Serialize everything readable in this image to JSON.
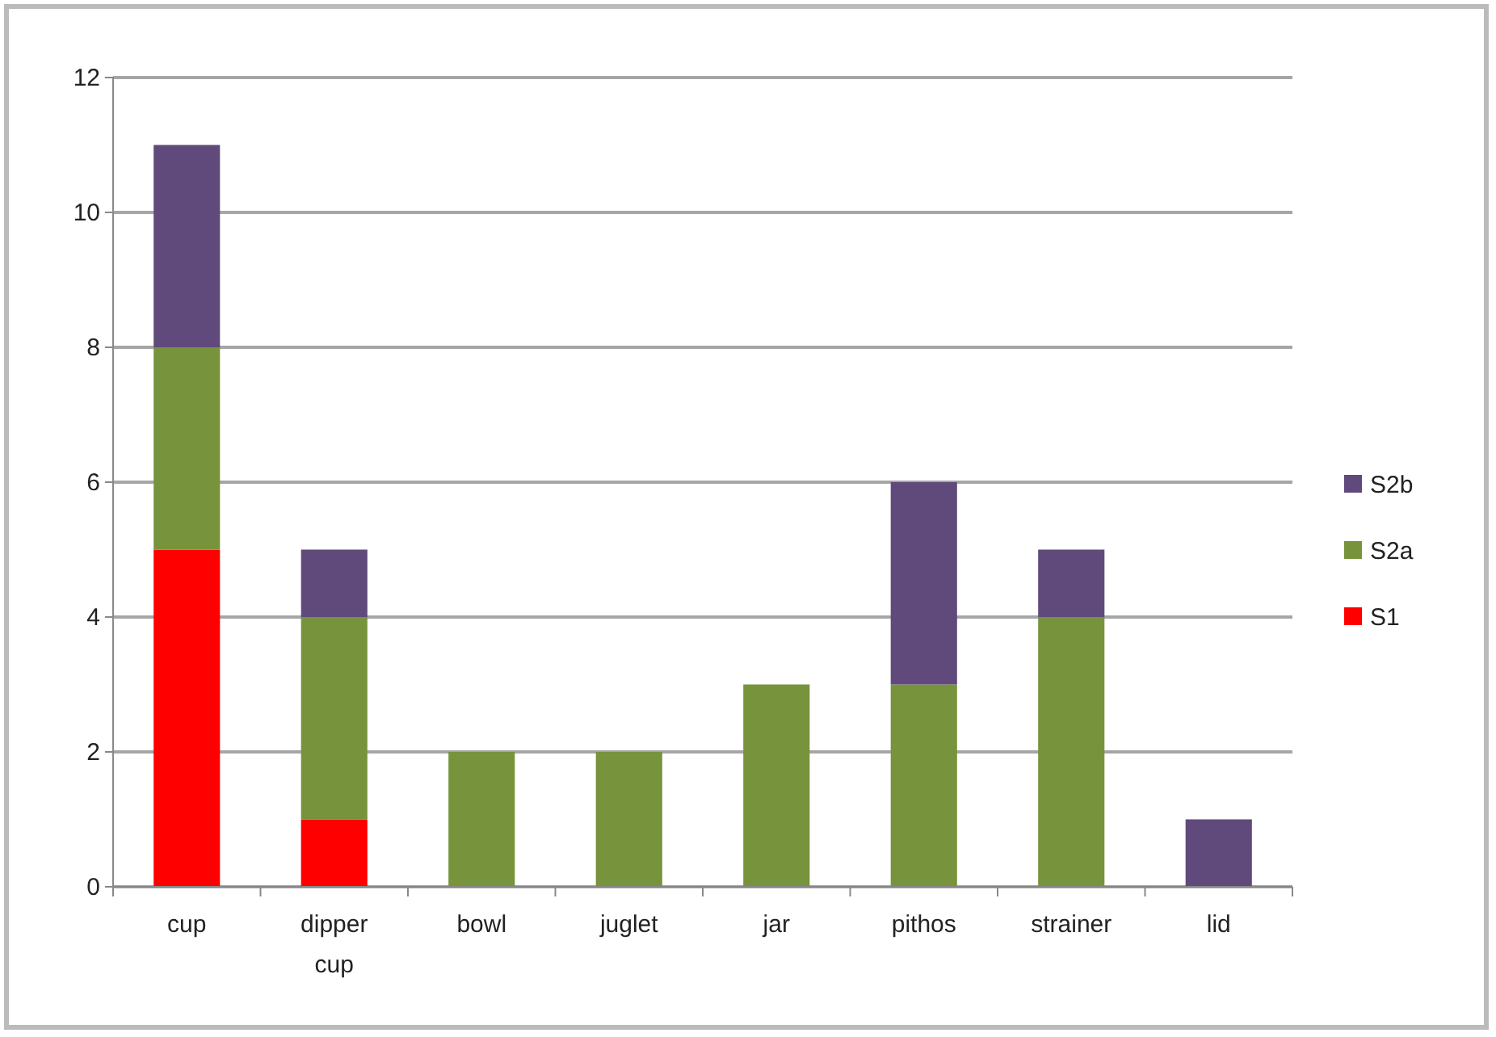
{
  "chart_data": {
    "type": "bar",
    "stacked": true,
    "categories": [
      "cup",
      "dipper cup",
      "bowl",
      "juglet",
      "jar",
      "pithos",
      "strainer",
      "lid"
    ],
    "series": [
      {
        "name": "S1",
        "color": "#ff0000",
        "values": [
          5,
          1,
          null,
          null,
          null,
          null,
          null,
          null
        ]
      },
      {
        "name": "S2a",
        "color": "#77933c",
        "values": [
          3,
          3,
          2,
          2,
          3,
          3,
          4,
          null
        ]
      },
      {
        "name": "S2b",
        "color": "#604a7b",
        "values": [
          3,
          1,
          null,
          null,
          null,
          3,
          1,
          1
        ]
      }
    ],
    "ylim": [
      0,
      12
    ],
    "yticks": [
      0,
      2,
      4,
      6,
      8,
      10,
      12
    ],
    "grid": "y",
    "legend": "right"
  }
}
